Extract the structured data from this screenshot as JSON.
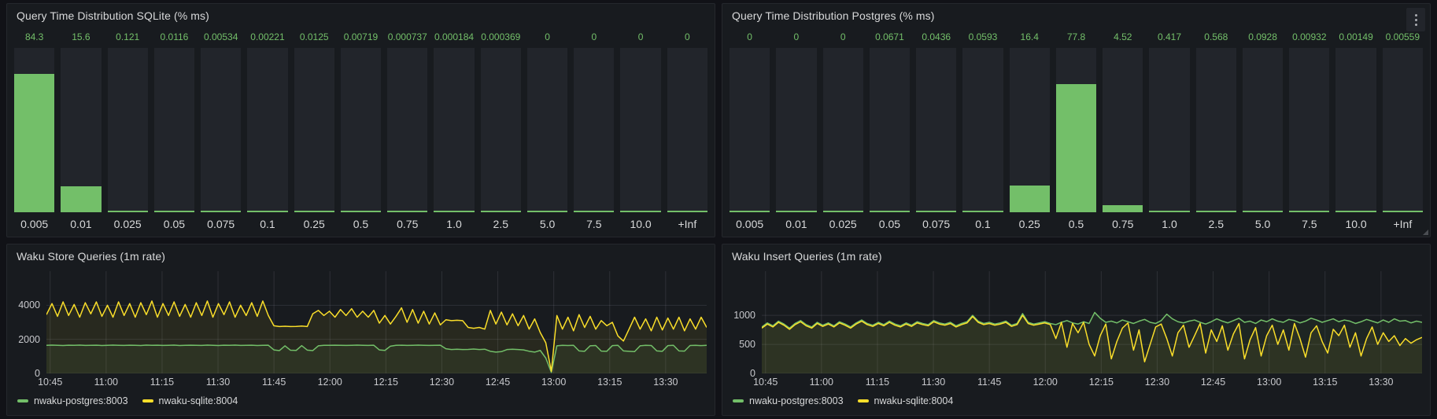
{
  "colors": {
    "green": "#73bf69",
    "yellow": "#fade2a",
    "page_bg": "#111217",
    "panel_bg": "#181b1f",
    "panel_border": "#25282d",
    "bar_bg": "#22252b",
    "grid": "rgba(204,204,220,0.12)",
    "value_text": "#73bf69",
    "label_text": "#d8d9da",
    "axis_text": "#c8c9cd"
  },
  "chart_data": [
    {
      "type": "bar",
      "title": "Query Time Distribution SQLite (% ms)",
      "categories": [
        "0.005",
        "0.01",
        "0.025",
        "0.05",
        "0.075",
        "0.1",
        "0.25",
        "0.5",
        "0.75",
        "1.0",
        "2.5",
        "5.0",
        "7.5",
        "10.0",
        "+Inf"
      ],
      "values": [
        84.3,
        15.6,
        0.121,
        0.0116,
        0.00534,
        0.00221,
        0.0125,
        0.00719,
        0.000737,
        0.000184,
        0.000369,
        0,
        0,
        0,
        0
      ],
      "value_labels": [
        "84.3",
        "15.6",
        "0.121",
        "0.0116",
        "0.00534",
        "0.00221",
        "0.0125",
        "0.00719",
        "0.000737",
        "0.000184",
        "0.000369",
        "0",
        "0",
        "0",
        "0"
      ],
      "ylim": [
        0,
        100
      ]
    },
    {
      "type": "bar",
      "title": "Query Time Distribution Postgres (% ms)",
      "categories": [
        "0.005",
        "0.01",
        "0.025",
        "0.05",
        "0.075",
        "0.1",
        "0.25",
        "0.5",
        "0.75",
        "1.0",
        "2.5",
        "5.0",
        "7.5",
        "10.0",
        "+Inf"
      ],
      "values": [
        0,
        0,
        0,
        0.0671,
        0.0436,
        0.0593,
        16.4,
        77.8,
        4.52,
        0.417,
        0.568,
        0.0928,
        0.00932,
        0.00149,
        0.00559
      ],
      "value_labels": [
        "0",
        "0",
        "0",
        "0.0671",
        "0.0436",
        "0.0593",
        "16.4",
        "77.8",
        "4.52",
        "0.417",
        "0.568",
        "0.0928",
        "0.00932",
        "0.00149",
        "0.00559"
      ],
      "ylim": [
        0,
        100
      ]
    },
    {
      "type": "line",
      "title": "Waku Store Queries (1m rate)",
      "x_ticks": [
        "10:45",
        "11:00",
        "11:15",
        "11:30",
        "11:45",
        "12:00",
        "12:15",
        "12:30",
        "12:45",
        "13:00",
        "13:15",
        "13:30"
      ],
      "x_range": [
        "10:44",
        "13:41"
      ],
      "y_ticks": [
        0,
        2000,
        4000
      ],
      "ylim": [
        0,
        6000
      ],
      "legend_position": "bottom-left",
      "series": [
        {
          "name": "nwaku-postgres:8003",
          "color": "#73bf69",
          "values": [
            1650,
            1660,
            1650,
            1640,
            1655,
            1650,
            1660,
            1645,
            1650,
            1655,
            1640,
            1650,
            1660,
            1650,
            1645,
            1655,
            1650,
            1640,
            1660,
            1650,
            1655,
            1645,
            1650,
            1660,
            1640,
            1650,
            1655,
            1650,
            1645,
            1660,
            1650,
            1640,
            1655,
            1650,
            1660,
            1645,
            1650,
            1655,
            1640,
            1650,
            1655,
            1380,
            1340,
            1620,
            1360,
            1350,
            1630,
            1370,
            1340,
            1620,
            1650,
            1650,
            1655,
            1650,
            1645,
            1650,
            1660,
            1650,
            1645,
            1655,
            1380,
            1350,
            1600,
            1650,
            1655,
            1645,
            1650,
            1660,
            1650,
            1645,
            1650,
            1655,
            1450,
            1400,
            1420,
            1400,
            1410,
            1430,
            1400,
            1420,
            1300,
            1250,
            1280,
            1400,
            1420,
            1400,
            1380,
            1300,
            1250,
            1350,
            900,
            60,
            1620,
            1650,
            1640,
            1650,
            1320,
            1300,
            1620,
            1640,
            1310,
            1300,
            1630,
            1650,
            1320,
            1300,
            1280,
            1620,
            1650,
            1640,
            1320,
            1300,
            1630,
            1650,
            1320,
            1310,
            1640,
            1650,
            1630,
            1650
          ]
        },
        {
          "name": "nwaku-sqlite:8004",
          "color": "#fade2a",
          "values": [
            3450,
            4100,
            3350,
            4200,
            3400,
            4050,
            3300,
            4150,
            3500,
            4200,
            3350,
            4000,
            3300,
            4200,
            3400,
            4100,
            3300,
            4150,
            3450,
            4250,
            3300,
            4100,
            3400,
            4200,
            3350,
            4050,
            3300,
            4150,
            3400,
            4250,
            3300,
            4100,
            3450,
            4200,
            3300,
            4000,
            3400,
            4150,
            3350,
            4250,
            3400,
            2800,
            2750,
            2770,
            2750,
            2760,
            2780,
            2750,
            3500,
            3700,
            3400,
            3650,
            3300,
            3750,
            3400,
            3800,
            3300,
            3650,
            3300,
            3700,
            2950,
            3400,
            2900,
            3350,
            3850,
            3000,
            3750,
            2950,
            3650,
            2900,
            3550,
            2850,
            3150,
            3100,
            3120,
            3100,
            2700,
            2650,
            2700,
            2600,
            3700,
            2900,
            3600,
            2850,
            3500,
            2800,
            3400,
            2600,
            3200,
            2400,
            1800,
            120,
            3400,
            2600,
            3300,
            2500,
            3450,
            2700,
            3350,
            2600,
            3100,
            2800,
            3000,
            2200,
            1900,
            2600,
            3300,
            2600,
            3200,
            2500,
            3300,
            2550,
            3250,
            2600,
            3300,
            2500,
            3200,
            2600,
            3300,
            2700
          ]
        }
      ]
    },
    {
      "type": "line",
      "title": "Waku Insert Queries (1m rate)",
      "x_ticks": [
        "10:45",
        "11:00",
        "11:15",
        "11:30",
        "11:45",
        "12:00",
        "12:15",
        "12:30",
        "12:45",
        "13:00",
        "13:15",
        "13:30"
      ],
      "x_range": [
        "10:44",
        "13:41"
      ],
      "y_ticks": [
        0,
        500,
        1000
      ],
      "ylim": [
        0,
        1760
      ],
      "legend_position": "bottom-left",
      "series": [
        {
          "name": "nwaku-postgres:8003",
          "color": "#73bf69",
          "values": [
            800,
            870,
            820,
            900,
            850,
            780,
            860,
            910,
            840,
            800,
            880,
            830,
            870,
            820,
            890,
            850,
            800,
            870,
            920,
            860,
            830,
            880,
            840,
            900,
            850,
            820,
            870,
            830,
            890,
            860,
            840,
            910,
            870,
            850,
            880,
            820,
            860,
            890,
            1000,
            900,
            860,
            880,
            850,
            870,
            900,
            830,
            860,
            1030,
            880,
            850,
            870,
            890,
            860,
            840,
            880,
            910,
            870,
            850,
            890,
            860,
            1050,
            950,
            880,
            900,
            870,
            920,
            890,
            860,
            900,
            930,
            880,
            860,
            910,
            1020,
            940,
            890,
            870,
            900,
            920,
            880,
            850,
            890,
            940,
            900,
            870,
            910,
            950,
            880,
            900,
            860,
            920,
            890,
            940,
            900,
            880,
            930,
            910,
            870,
            900,
            950,
            920,
            880,
            910,
            940,
            890,
            920,
            900,
            860,
            890,
            930,
            900,
            870,
            920,
            880,
            940,
            900,
            910,
            870,
            900,
            880
          ]
        },
        {
          "name": "nwaku-sqlite:8004",
          "color": "#fade2a",
          "values": [
            780,
            850,
            800,
            880,
            830,
            760,
            840,
            890,
            820,
            780,
            860,
            810,
            850,
            800,
            870,
            830,
            780,
            850,
            900,
            840,
            810,
            860,
            820,
            880,
            830,
            800,
            850,
            810,
            870,
            840,
            820,
            890,
            850,
            830,
            860,
            800,
            840,
            870,
            980,
            880,
            840,
            860,
            830,
            850,
            880,
            810,
            840,
            1000,
            860,
            830,
            850,
            870,
            840,
            600,
            880,
            450,
            860,
            700,
            880,
            500,
            300,
            650,
            850,
            250,
            550,
            780,
            870,
            400,
            750,
            200,
            500,
            800,
            850,
            600,
            300,
            700,
            830,
            450,
            650,
            860,
            350,
            750,
            550,
            820,
            400,
            680,
            860,
            250,
            580,
            790,
            300,
            650,
            830,
            500,
            750,
            400,
            860,
            600,
            280,
            700,
            820,
            550,
            350,
            760,
            650,
            830,
            450,
            700,
            300,
            600,
            800,
            500,
            700,
            550,
            650,
            480,
            600,
            520,
            580,
            620
          ]
        }
      ]
    }
  ],
  "ui": {
    "kebab_icon": "vertical-three-dots"
  }
}
